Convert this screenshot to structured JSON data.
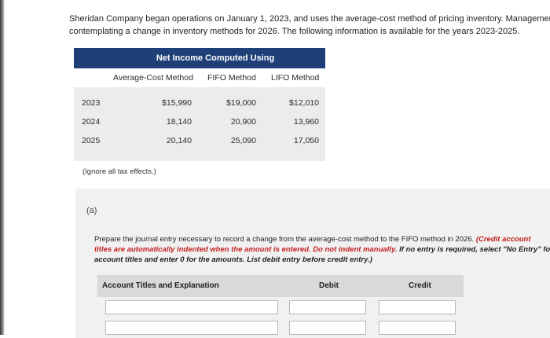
{
  "intro": {
    "line1": "Sheridan Company began operations on January 1, 2023, and uses the average-cost method of pricing inventory. Management is",
    "line2": "contemplating a change in inventory methods for 2026. The following information is available for the years 2023-2025."
  },
  "net_income_table": {
    "title": "Net Income Computed Using",
    "columns": [
      "Average-Cost Method",
      "FIFO Method",
      "LIFO Method"
    ],
    "rows": [
      {
        "year": "2023",
        "avg": "$15,990",
        "fifo": "$19,000",
        "lifo": "$12,010"
      },
      {
        "year": "2024",
        "avg": "18,140",
        "fifo": "20,900",
        "lifo": "13,960"
      },
      {
        "year": "2025",
        "avg": "20,140",
        "fifo": "25,090",
        "lifo": "17,050"
      }
    ]
  },
  "note": "(Ignore all tax effects.)",
  "part_label": "(a)",
  "instructions": {
    "line1_plain": "Prepare the journal entry necessary to record a change from the average-cost method to the FIFO method in 2026. ",
    "line1_red": "(Credit account",
    "line2_red": "titles are automatically indented when the amount is entered. Do not indent manually.",
    "line2_em": " If no entry is required, select \"No Entry\" for the",
    "line3_em": "account titles and enter 0 for the amounts. List debit entry before credit entry.)"
  },
  "journal": {
    "headers": {
      "account": "Account Titles and Explanation",
      "debit": "Debit",
      "credit": "Credit"
    },
    "rows": [
      {
        "account": "",
        "debit": "",
        "credit": ""
      },
      {
        "account": "",
        "debit": "",
        "credit": ""
      }
    ]
  }
}
